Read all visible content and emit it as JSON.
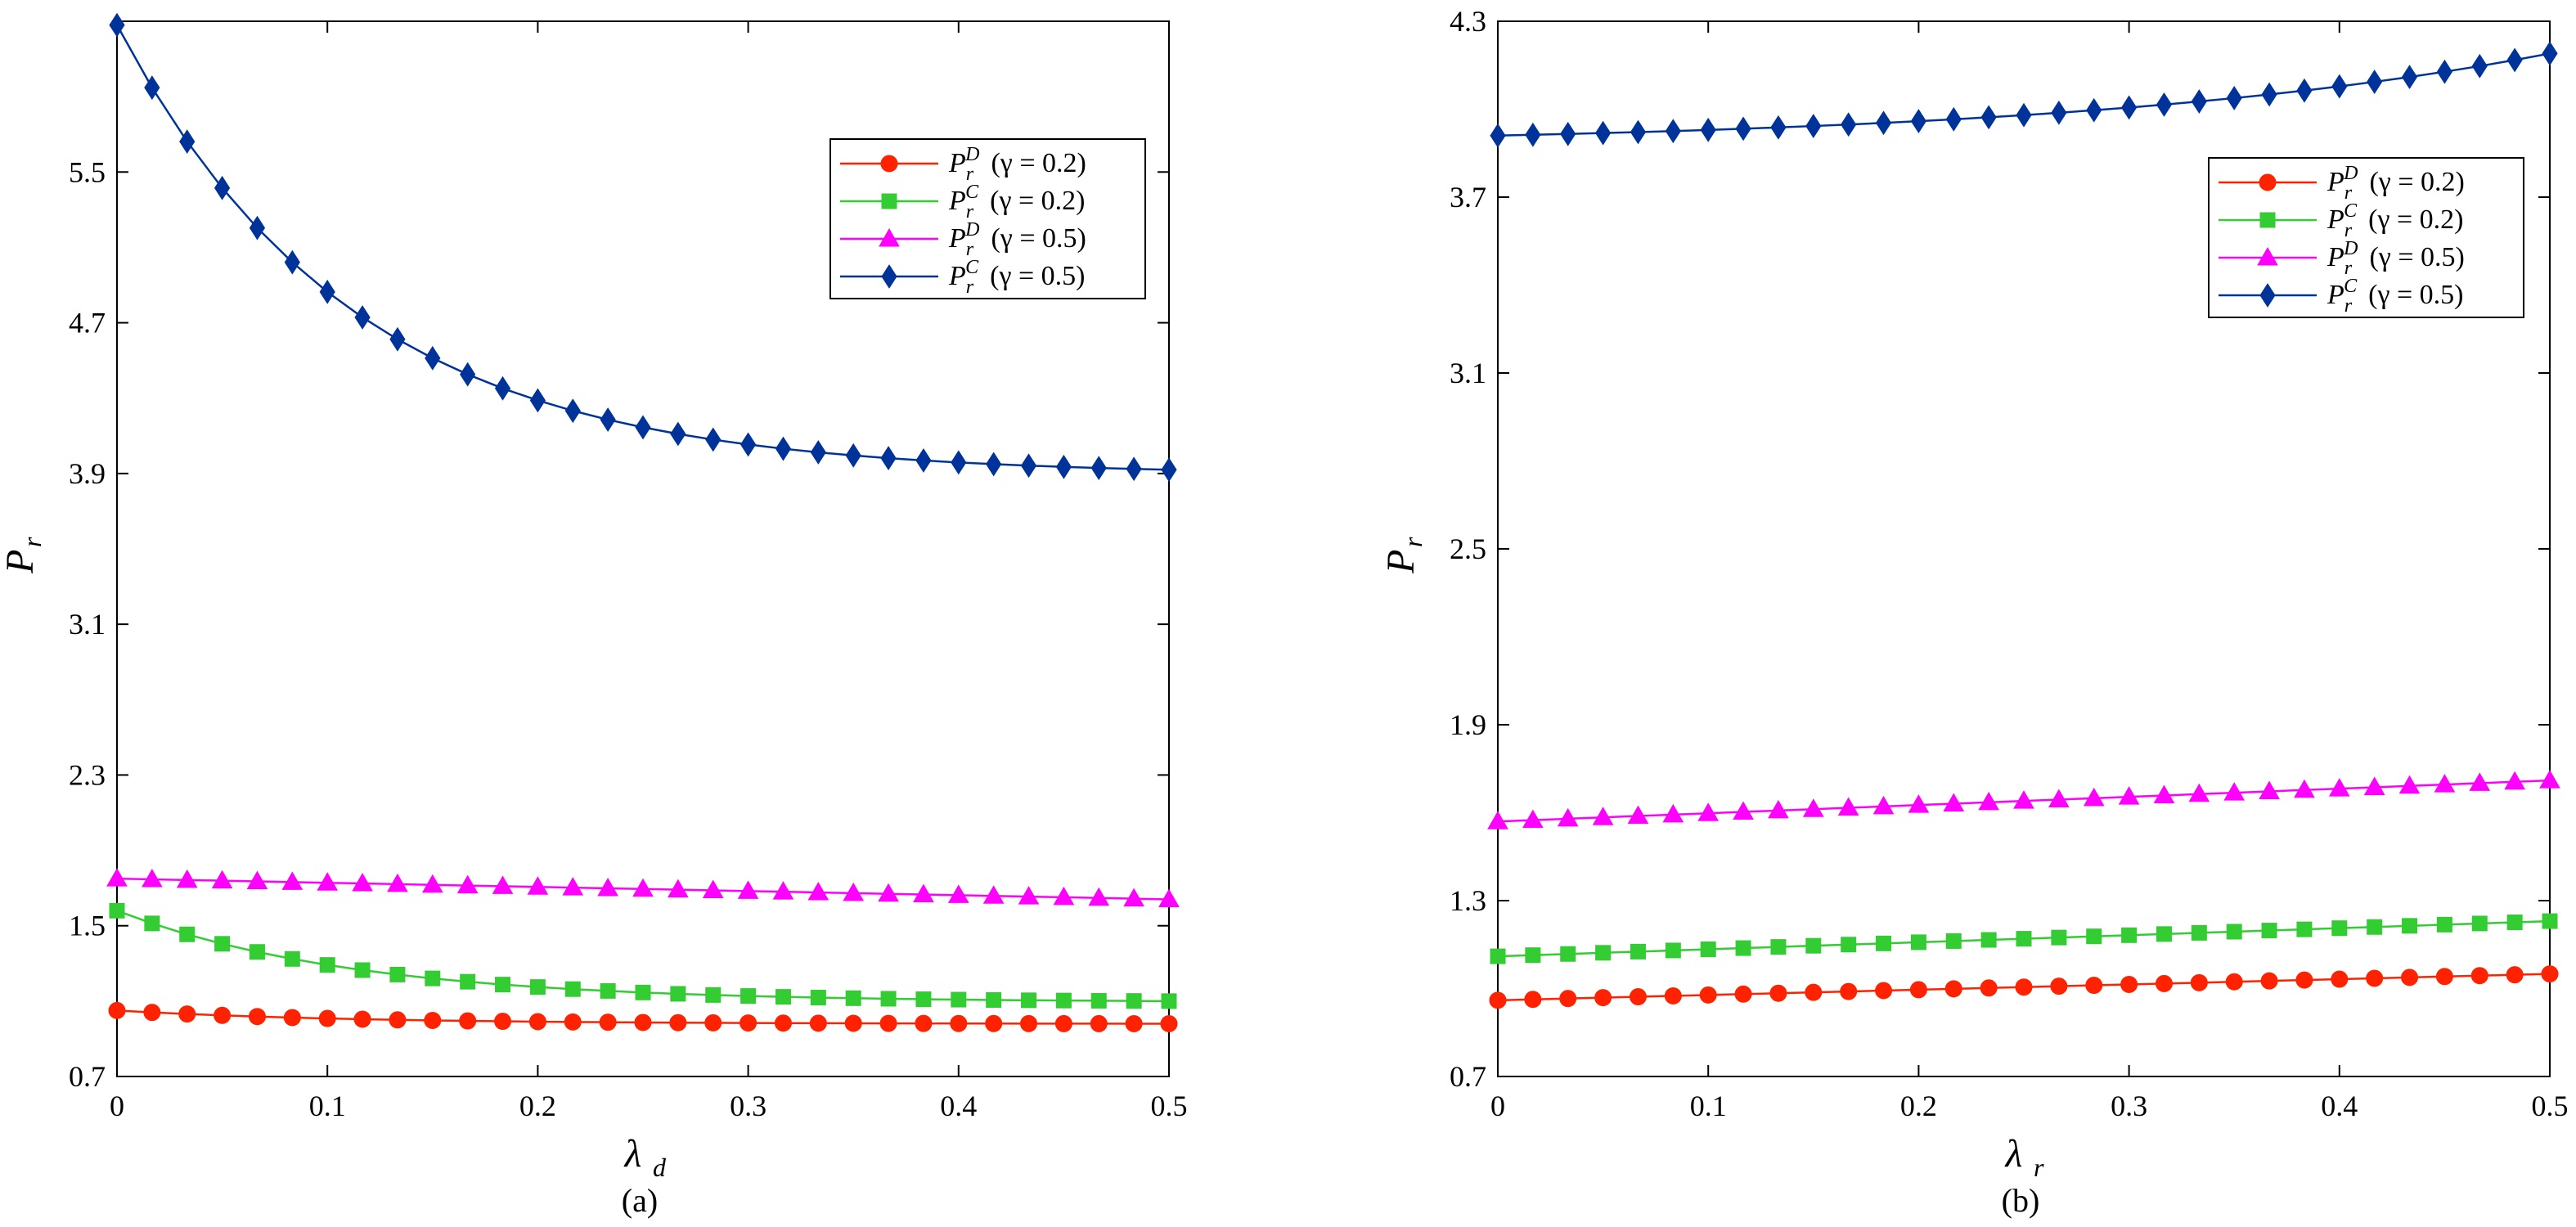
{
  "chart_data": [
    {
      "type": "line",
      "panel_label": "(a)",
      "xlabel": "λ",
      "xlabel_sub": "d",
      "ylabel": "P",
      "ylabel_sub": "r",
      "xlim": [
        0,
        0.5
      ],
      "ylim": [
        0.7,
        6.3
      ],
      "xticks": [
        0,
        0.1,
        0.2,
        0.3,
        0.4,
        0.5
      ],
      "xtick_labels": [
        "0",
        "0.1",
        "0.2",
        "0.3",
        "0.4",
        "0.5"
      ],
      "yticks": [
        0.7,
        1.5,
        2.3,
        3.1,
        3.9,
        4.7,
        5.5
      ],
      "ytick_labels": [
        "0.7",
        "1.5",
        "2.3",
        "3.1",
        "3.9",
        "4.7",
        "5.5"
      ],
      "grid": false,
      "legend_position": "top-right",
      "x_points": 31,
      "series": [
        {
          "name": "P_r^D (γ = 0.2)",
          "sup": "D",
          "gamma": "0.2",
          "color": "#ff2200",
          "marker": "circle",
          "start": 1.05,
          "end": 0.98,
          "shape": "decay"
        },
        {
          "name": "P_r^C (γ = 0.2)",
          "sup": "C",
          "gamma": "0.2",
          "color": "#33cc33",
          "marker": "square",
          "start": 1.58,
          "end": 1.1,
          "shape": "decay"
        },
        {
          "name": "P_r^D (γ = 0.5)",
          "sup": "D",
          "gamma": "0.5",
          "color": "#ff00ff",
          "marker": "triangle",
          "start": 1.75,
          "end": 1.64,
          "shape": "linear"
        },
        {
          "name": "P_r^C (γ = 0.5)",
          "sup": "C",
          "gamma": "0.5",
          "color": "#003399",
          "marker": "diamond",
          "start": 6.28,
          "end": 3.92,
          "shape": "decay"
        }
      ]
    },
    {
      "type": "line",
      "panel_label": "(b)",
      "xlabel": "λ",
      "xlabel_sub": "r",
      "ylabel": "P",
      "ylabel_sub": "r",
      "xlim": [
        0,
        0.5
      ],
      "ylim": [
        0.7,
        4.3
      ],
      "xticks": [
        0,
        0.1,
        0.2,
        0.3,
        0.4,
        0.5
      ],
      "xtick_labels": [
        "0",
        "0.1",
        "0.2",
        "0.3",
        "0.4",
        "0.5"
      ],
      "yticks": [
        0.7,
        1.3,
        1.9,
        2.5,
        3.1,
        3.7,
        4.3
      ],
      "ytick_labels": [
        "0.7",
        "1.3",
        "1.9",
        "2.5",
        "3.1",
        "3.7",
        "4.3"
      ],
      "grid": false,
      "legend_position": "top-right",
      "x_points": 31,
      "series": [
        {
          "name": "P_r^D (γ = 0.2)",
          "sup": "D",
          "gamma": "0.2",
          "color": "#ff2200",
          "marker": "circle",
          "start": 0.96,
          "end": 1.05,
          "shape": "linear"
        },
        {
          "name": "P_r^C (γ = 0.2)",
          "sup": "C",
          "gamma": "0.2",
          "color": "#33cc33",
          "marker": "square",
          "start": 1.11,
          "end": 1.23,
          "shape": "linear"
        },
        {
          "name": "P_r^D (γ = 0.5)",
          "sup": "D",
          "gamma": "0.5",
          "color": "#ff00ff",
          "marker": "triangle",
          "start": 1.57,
          "end": 1.71,
          "shape": "linear"
        },
        {
          "name": "P_r^C (γ = 0.5)",
          "sup": "C",
          "gamma": "0.5",
          "color": "#003399",
          "marker": "diamond",
          "start": 3.91,
          "end": 4.19,
          "shape": "grow"
        }
      ]
    }
  ]
}
